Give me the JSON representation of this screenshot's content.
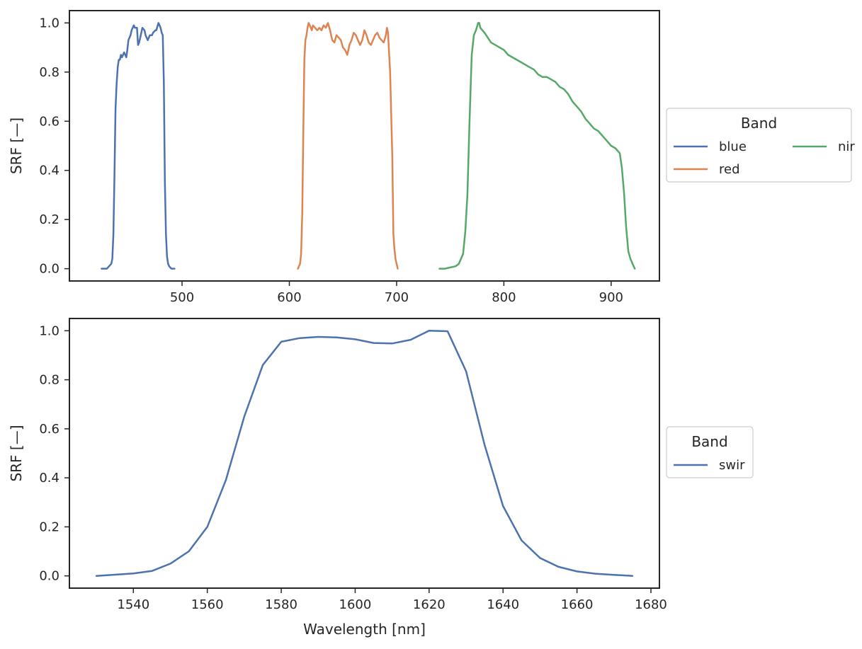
{
  "chart_data": [
    {
      "type": "line",
      "title": "",
      "xlabel": "",
      "ylabel": "SRF [—]",
      "xlim": [
        395,
        945
      ],
      "ylim": [
        -0.05,
        1.05
      ],
      "xticks": [
        500,
        600,
        700,
        800,
        900
      ],
      "yticks": [
        0.0,
        0.2,
        0.4,
        0.6,
        0.8,
        1.0
      ],
      "grid": false,
      "legend": {
        "title": "Band",
        "placement": "right-outside",
        "columns": 2,
        "entries": [
          "blue",
          "red",
          "nir"
        ]
      },
      "series": [
        {
          "name": "blue",
          "color": "#4c72b0",
          "x": [
            425,
            428,
            430,
            432,
            434,
            435,
            436,
            437,
            438,
            439,
            440,
            441,
            442,
            443,
            444,
            446,
            447,
            448,
            449,
            450,
            451,
            452,
            453,
            455,
            456,
            458,
            459,
            460,
            461,
            462,
            463,
            465,
            466,
            468,
            470,
            472,
            473,
            475,
            476,
            478,
            479,
            480,
            481,
            482,
            483,
            484,
            485,
            486,
            487,
            488,
            489,
            490,
            491,
            493
          ],
          "y": [
            0.0,
            0.0,
            0.0,
            0.01,
            0.02,
            0.04,
            0.14,
            0.38,
            0.65,
            0.75,
            0.82,
            0.85,
            0.85,
            0.87,
            0.86,
            0.88,
            0.87,
            0.86,
            0.89,
            0.93,
            0.94,
            0.95,
            0.97,
            0.99,
            0.98,
            0.98,
            0.91,
            0.92,
            0.94,
            0.96,
            0.98,
            0.97,
            0.95,
            0.93,
            0.95,
            0.95,
            0.96,
            0.97,
            0.97,
            1.0,
            0.99,
            0.98,
            0.96,
            0.95,
            0.76,
            0.35,
            0.14,
            0.05,
            0.02,
            0.01,
            0.005,
            0.0,
            0.0,
            0.0
          ]
        },
        {
          "name": "red",
          "color": "#dd8452",
          "x": [
            608,
            610,
            611,
            612,
            613,
            614,
            615,
            616,
            617,
            618,
            619,
            620,
            621,
            622,
            624,
            626,
            628,
            630,
            632,
            634,
            636,
            638,
            640,
            642,
            644,
            646,
            648,
            650,
            652,
            654,
            656,
            658,
            660,
            662,
            664,
            666,
            668,
            670,
            672,
            674,
            676,
            678,
            680,
            682,
            684,
            686,
            688,
            690,
            691,
            692,
            694,
            696,
            697,
            698,
            699,
            700,
            701
          ],
          "y": [
            0.0,
            0.02,
            0.06,
            0.22,
            0.55,
            0.85,
            0.93,
            0.95,
            0.98,
            1.0,
            0.99,
            0.98,
            0.97,
            0.99,
            0.98,
            0.97,
            0.98,
            0.97,
            0.99,
            0.98,
            1.0,
            0.97,
            0.93,
            0.92,
            0.95,
            0.94,
            0.93,
            0.9,
            0.89,
            0.87,
            0.91,
            0.93,
            0.96,
            0.95,
            0.93,
            0.91,
            0.93,
            0.97,
            0.95,
            0.92,
            0.91,
            0.93,
            0.95,
            0.96,
            0.94,
            0.93,
            0.92,
            0.95,
            0.98,
            0.96,
            0.8,
            0.45,
            0.14,
            0.08,
            0.04,
            0.02,
            0.0
          ]
        },
        {
          "name": "nir",
          "color": "#55a868",
          "x": [
            740,
            745,
            750,
            755,
            758,
            760,
            762,
            764,
            766,
            768,
            770,
            772,
            774,
            776,
            777,
            778,
            780,
            782,
            785,
            788,
            792,
            796,
            800,
            804,
            808,
            812,
            816,
            820,
            824,
            828,
            832,
            836,
            840,
            844,
            848,
            852,
            856,
            860,
            864,
            868,
            872,
            876,
            880,
            884,
            888,
            892,
            896,
            900,
            904,
            906,
            908,
            910,
            912,
            914,
            916,
            918,
            920,
            922
          ],
          "y": [
            0.0,
            0.0,
            0.005,
            0.01,
            0.02,
            0.04,
            0.06,
            0.15,
            0.3,
            0.6,
            0.87,
            0.95,
            0.97,
            1.0,
            1.0,
            0.98,
            0.97,
            0.96,
            0.94,
            0.92,
            0.91,
            0.9,
            0.89,
            0.87,
            0.86,
            0.85,
            0.84,
            0.83,
            0.82,
            0.81,
            0.79,
            0.78,
            0.78,
            0.77,
            0.76,
            0.74,
            0.73,
            0.71,
            0.68,
            0.66,
            0.64,
            0.61,
            0.59,
            0.57,
            0.56,
            0.54,
            0.52,
            0.5,
            0.49,
            0.48,
            0.47,
            0.41,
            0.31,
            0.17,
            0.07,
            0.04,
            0.02,
            0.0
          ]
        }
      ]
    },
    {
      "type": "line",
      "title": "",
      "xlabel": "Wavelength [nm]",
      "ylabel": "SRF [—]",
      "xlim": [
        1522.7,
        1682.3
      ],
      "ylim": [
        -0.05,
        1.05
      ],
      "xticks": [
        1540,
        1560,
        1580,
        1600,
        1620,
        1640,
        1660,
        1680
      ],
      "yticks": [
        0.0,
        0.2,
        0.4,
        0.6,
        0.8,
        1.0
      ],
      "grid": false,
      "legend": {
        "title": "Band",
        "placement": "right-outside",
        "columns": 1,
        "entries": [
          "swir"
        ]
      },
      "series": [
        {
          "name": "swir",
          "color": "#4c72b0",
          "x": [
            1530,
            1535,
            1540,
            1545,
            1550,
            1555,
            1560,
            1565,
            1570,
            1575,
            1580,
            1585,
            1590,
            1595,
            1600,
            1605,
            1610,
            1615,
            1620,
            1625,
            1630,
            1635,
            1640,
            1645,
            1650,
            1655,
            1660,
            1665,
            1670,
            1675
          ],
          "y": [
            0.0,
            0.005,
            0.01,
            0.02,
            0.05,
            0.1,
            0.2,
            0.39,
            0.65,
            0.86,
            0.955,
            0.97,
            0.975,
            0.973,
            0.965,
            0.95,
            0.948,
            0.963,
            1.0,
            0.998,
            0.835,
            0.535,
            0.285,
            0.145,
            0.073,
            0.037,
            0.018,
            0.009,
            0.004,
            0.0
          ]
        }
      ]
    }
  ]
}
